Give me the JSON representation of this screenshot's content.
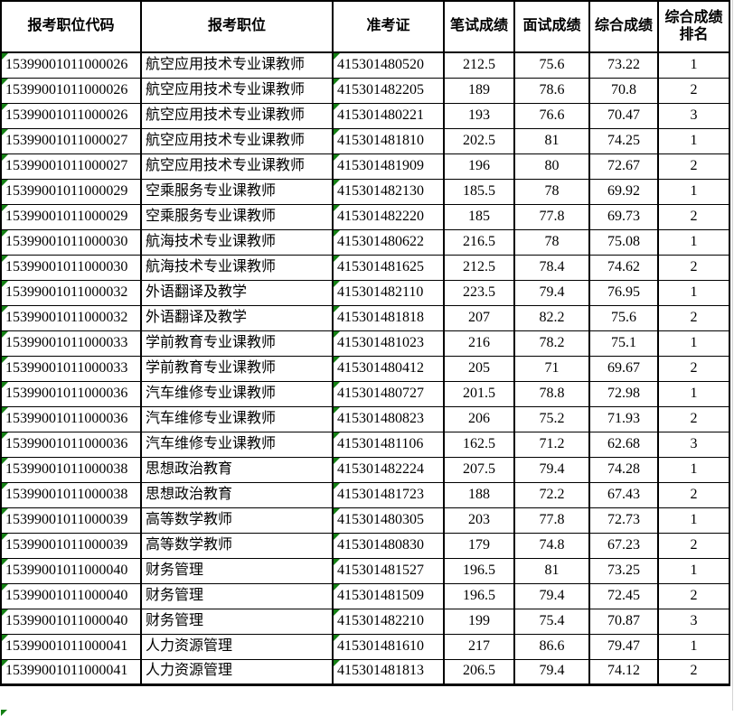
{
  "table": {
    "headers": [
      "报考职位代码",
      "报考职位",
      "准考证",
      "笔试成绩",
      "面试成绩",
      "综合成绩",
      "综合成绩排名"
    ],
    "rows": [
      [
        "15399001011000026",
        "航空应用技术专业课教师",
        "415301480520",
        "212.5",
        "75.6",
        "73.22",
        "1"
      ],
      [
        "15399001011000026",
        "航空应用技术专业课教师",
        "415301482205",
        "189",
        "78.6",
        "70.8",
        "2"
      ],
      [
        "15399001011000026",
        "航空应用技术专业课教师",
        "415301480221",
        "193",
        "76.6",
        "70.47",
        "3"
      ],
      [
        "15399001011000027",
        "航空应用技术专业课教师",
        "415301481810",
        "202.5",
        "81",
        "74.25",
        "1"
      ],
      [
        "15399001011000027",
        "航空应用技术专业课教师",
        "415301481909",
        "196",
        "80",
        "72.67",
        "2"
      ],
      [
        "15399001011000029",
        "空乘服务专业课教师",
        "415301482130",
        "185.5",
        "78",
        "69.92",
        "1"
      ],
      [
        "15399001011000029",
        "空乘服务专业课教师",
        "415301482220",
        "185",
        "77.8",
        "69.73",
        "2"
      ],
      [
        "15399001011000030",
        "航海技术专业课教师",
        "415301480622",
        "216.5",
        "78",
        "75.08",
        "1"
      ],
      [
        "15399001011000030",
        "航海技术专业课教师",
        "415301481625",
        "212.5",
        "78.4",
        "74.62",
        "2"
      ],
      [
        "15399001011000032",
        "外语翻译及教学",
        "415301482110",
        "223.5",
        "79.4",
        "76.95",
        "1"
      ],
      [
        "15399001011000032",
        "外语翻译及教学",
        "415301481818",
        "207",
        "82.2",
        "75.6",
        "2"
      ],
      [
        "15399001011000033",
        "学前教育专业课教师",
        "415301481023",
        "216",
        "78.2",
        "75.1",
        "1"
      ],
      [
        "15399001011000033",
        "学前教育专业课教师",
        "415301480412",
        "205",
        "71",
        "69.67",
        "2"
      ],
      [
        "15399001011000036",
        "汽车维修专业课教师",
        "415301480727",
        "201.5",
        "78.8",
        "72.98",
        "1"
      ],
      [
        "15399001011000036",
        "汽车维修专业课教师",
        "415301480823",
        "206",
        "75.2",
        "71.93",
        "2"
      ],
      [
        "15399001011000036",
        "汽车维修专业课教师",
        "415301481106",
        "162.5",
        "71.2",
        "62.68",
        "3"
      ],
      [
        "15399001011000038",
        "思想政治教育",
        "415301482224",
        "207.5",
        "79.4",
        "74.28",
        "1"
      ],
      [
        "15399001011000038",
        "思想政治教育",
        "415301481723",
        "188",
        "72.2",
        "67.43",
        "2"
      ],
      [
        "15399001011000039",
        "高等数学教师",
        "415301480305",
        "203",
        "77.8",
        "72.73",
        "1"
      ],
      [
        "15399001011000039",
        "高等数学教师",
        "415301480830",
        "179",
        "74.8",
        "67.23",
        "2"
      ],
      [
        "15399001011000040",
        "财务管理",
        "415301481527",
        "196.5",
        "81",
        "73.25",
        "1"
      ],
      [
        "15399001011000040",
        "财务管理",
        "415301481509",
        "196.5",
        "79.4",
        "72.45",
        "2"
      ],
      [
        "15399001011000040",
        "财务管理",
        "415301482210",
        "199",
        "75.4",
        "70.87",
        "3"
      ],
      [
        "15399001011000041",
        "人力资源管理",
        "415301481610",
        "217",
        "86.6",
        "79.47",
        "1"
      ],
      [
        "15399001011000041",
        "人力资源管理",
        "415301481813",
        "206.5",
        "79.4",
        "74.12",
        "2"
      ]
    ],
    "flagged_columns": [
      "报考职位代码",
      "准考证"
    ],
    "flagged_column_indexes": [
      0,
      2
    ],
    "numeric_column_start_index": 3
  },
  "colors": {
    "background": "#ffffff",
    "text": "#000000",
    "border": "#000000",
    "error_indicator_green": "#148014",
    "gridline_gray": "#d4d4d4"
  }
}
